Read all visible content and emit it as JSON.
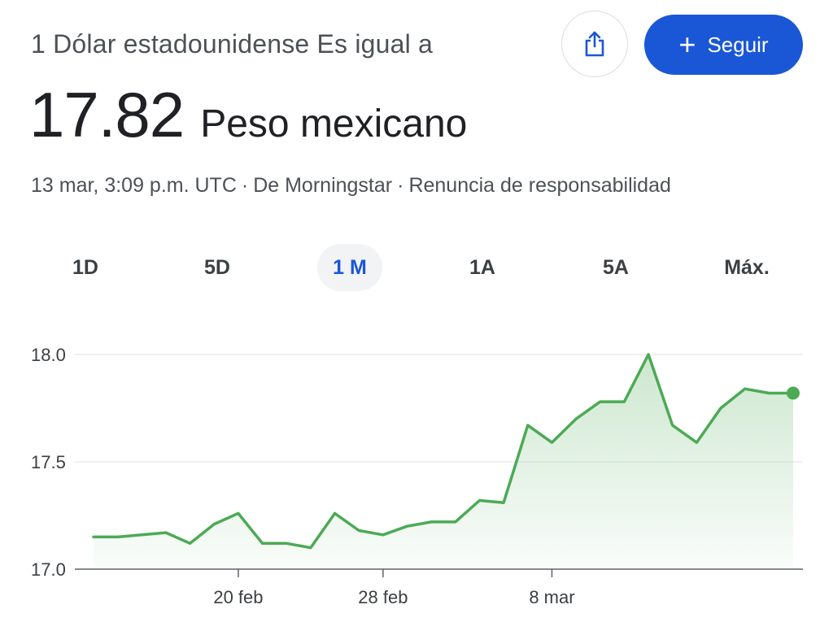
{
  "header": {
    "conversion_text": "1 Dólar estadounidense Es igual a",
    "rate_value": "17.82",
    "rate_currency": "Peso mexicano"
  },
  "meta": {
    "timestamp": "13 mar, 3:09 p.m. UTC",
    "source": "De Morningstar",
    "disclaimer": "Renuncia de responsabilidad"
  },
  "actions": {
    "share_icon": "share-icon",
    "follow_label": "Seguir"
  },
  "ranges": [
    {
      "label": "1D",
      "active": false
    },
    {
      "label": "5D",
      "active": false
    },
    {
      "label": "1 M",
      "active": true
    },
    {
      "label": "1A",
      "active": false
    },
    {
      "label": "5A",
      "active": false
    },
    {
      "label": "Máx.",
      "active": false
    }
  ],
  "colors": {
    "line": "#4caa55",
    "accent": "#1a57d6"
  },
  "chart_data": {
    "type": "area",
    "x": [
      "12 feb",
      "13 feb",
      "14 feb",
      "15 feb",
      "16 feb",
      "19 feb",
      "20 feb",
      "21 feb",
      "22 feb",
      "23 feb",
      "26 feb",
      "27 feb",
      "28 feb",
      "29 feb",
      "1 mar",
      "4 mar",
      "5 mar",
      "6 mar",
      "7 mar",
      "8 mar",
      "11 mar",
      "12 mar",
      "13 mar",
      "14 mar",
      "15 mar",
      "18 mar",
      "19 mar",
      "20 mar",
      "21 mar",
      "22 mar"
    ],
    "values": [
      17.15,
      17.15,
      17.16,
      17.17,
      17.12,
      17.21,
      17.26,
      17.12,
      17.12,
      17.1,
      17.26,
      17.18,
      17.16,
      17.2,
      17.22,
      17.22,
      17.32,
      17.31,
      17.67,
      17.59,
      17.7,
      17.78,
      17.78,
      18.0,
      17.67,
      17.59,
      17.75,
      17.84,
      17.82,
      17.82
    ],
    "x_tick_labels": [
      "20 feb",
      "28 feb",
      "8 mar"
    ],
    "y_ticks": [
      17.0,
      17.5,
      18.0
    ],
    "y_tick_labels": [
      "17.0",
      "17.5",
      "18.0"
    ],
    "ylim": [
      17.0,
      18.0
    ],
    "grid": true
  }
}
